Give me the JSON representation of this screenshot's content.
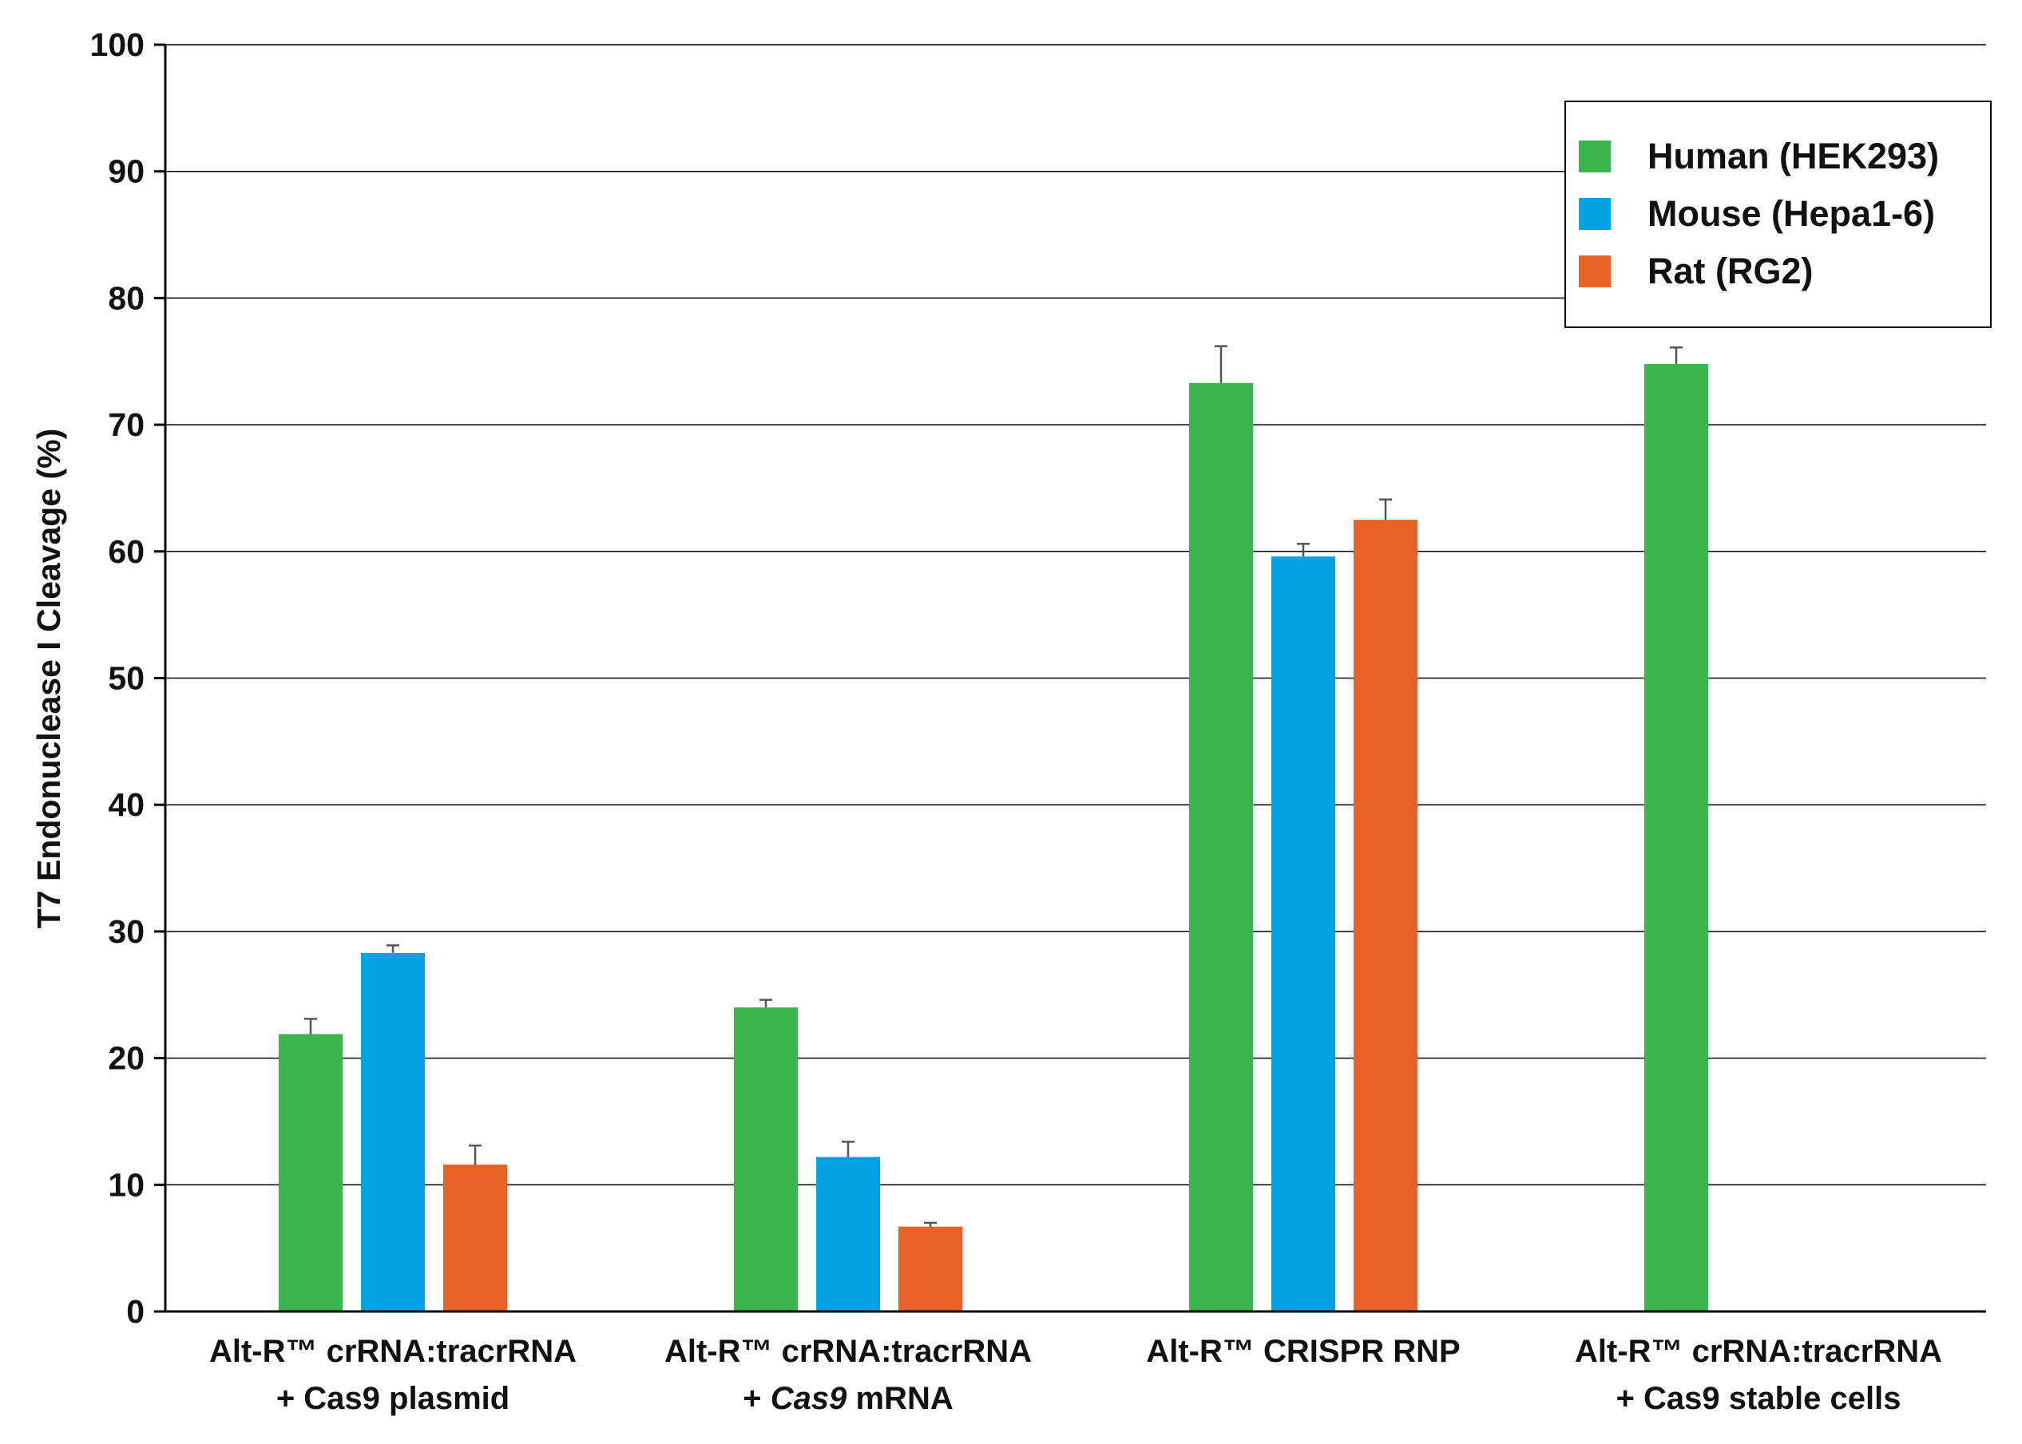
{
  "chart_data": {
    "type": "bar",
    "ylabel": "T7 Endonuclease I Cleavage (%)",
    "ylim": [
      0,
      100
    ],
    "yticks": [
      0,
      10,
      20,
      30,
      40,
      50,
      60,
      70,
      80,
      90,
      100
    ],
    "grid": true,
    "legend_position": "top-right",
    "categories": [
      {
        "line1": "Alt-R™ crRNA:tracrRNA",
        "line2_prefix": "+ ",
        "line2_italic": "",
        "line2_suffix": "Cas9 plasmid"
      },
      {
        "line1": "Alt-R™ crRNA:tracrRNA",
        "line2_prefix": "+ ",
        "line2_italic": "Cas9",
        "line2_suffix": " mRNA"
      },
      {
        "line1": "Alt-R™ CRISPR RNP",
        "line2_prefix": "",
        "line2_italic": "",
        "line2_suffix": ""
      },
      {
        "line1": "Alt-R™ crRNA:tracrRNA",
        "line2_prefix": "+ ",
        "line2_italic": "",
        "line2_suffix": "Cas9 stable cells"
      }
    ],
    "series": [
      {
        "name": "Human (HEK293)",
        "color": "#3cb54f",
        "values": [
          21.9,
          24.0,
          73.3,
          74.8
        ],
        "errors": [
          1.2,
          0.6,
          2.9,
          1.3
        ]
      },
      {
        "name": "Mouse (Hepa1-6)",
        "color": "#00a3e2",
        "values": [
          28.3,
          12.2,
          59.6,
          null
        ],
        "errors": [
          0.6,
          1.2,
          1.0,
          null
        ]
      },
      {
        "name": "Rat (RG2)",
        "color": "#e66226",
        "values": [
          11.6,
          6.7,
          62.5,
          null
        ],
        "errors": [
          1.5,
          0.3,
          1.6,
          null
        ]
      }
    ]
  }
}
